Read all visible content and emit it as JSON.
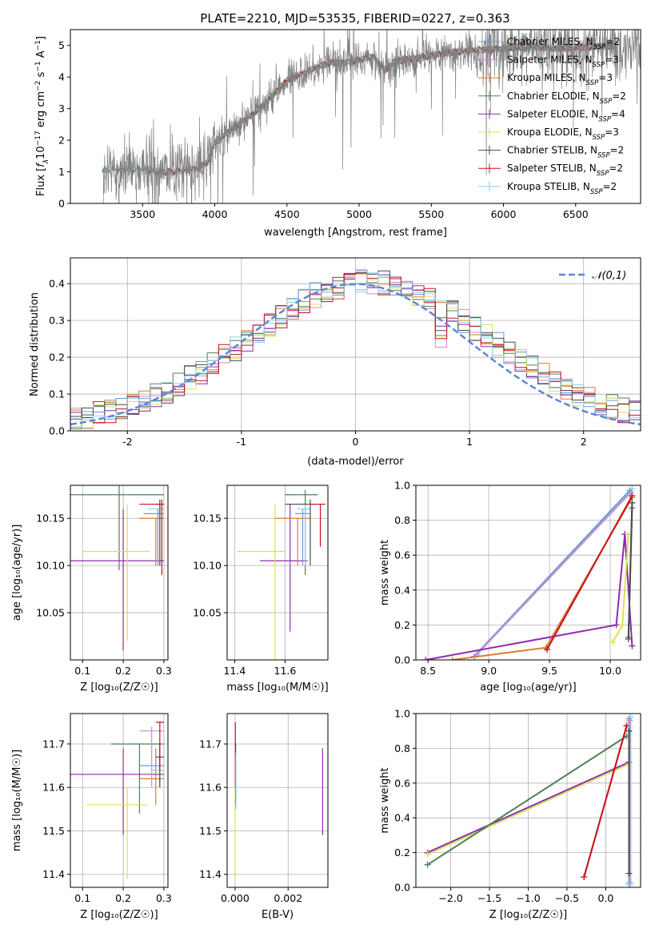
{
  "figure": {
    "title": "PLATE=2210, MJD=53535, FIBERID=0227, z=0.363"
  },
  "colors": {
    "data": "#808080",
    "chabrier_miles": "#6a9bd8",
    "salpeter_miles": "#c78fd0",
    "kroupa_miles": "#e07b2c",
    "chabrier_elodie": "#4f7f55",
    "salpeter_elodie": "#8e2bb0",
    "kroupa_elodie": "#d8e25a",
    "chabrier_stelib": "#4a4a4a",
    "salpeter_stelib": "#c8101e",
    "kroupa_stelib": "#86d3e3",
    "normal": "#5b87d8",
    "grid": "#b0b0b0"
  },
  "chart_data": [
    {
      "id": "spectrum",
      "type": "line",
      "xlabel": "wavelength [Angstrom, rest frame]",
      "ylabel_parts": [
        "Flux [",
        "f",
        "λ",
        "10",
        "−17",
        " erg cm",
        "−2",
        " s",
        "−1",
        " A",
        "−1",
        "]"
      ],
      "xlim": [
        3000,
        6950
      ],
      "ylim": [
        0,
        5.5
      ],
      "xticks": [
        3500,
        4000,
        4500,
        5000,
        5500,
        6000,
        6500
      ],
      "yticks": [
        0,
        1,
        2,
        3,
        4,
        5
      ],
      "grid": false,
      "legend_position": "right",
      "legend": [
        {
          "key": "chabrier_miles",
          "text": "Chabrier MILES, N",
          "sub": "SSP",
          "val": "=2"
        },
        {
          "key": "salpeter_miles",
          "text": "Salpeter MILES, N",
          "sub": "SSP",
          "val": "=3"
        },
        {
          "key": "kroupa_miles",
          "text": "Kroupa MILES, N",
          "sub": "SSP",
          "val": "=3"
        },
        {
          "key": "chabrier_elodie",
          "text": "Chabrier ELODIE, N",
          "sub": "SSP",
          "val": "=2"
        },
        {
          "key": "salpeter_elodie",
          "text": "Salpeter ELODIE, N",
          "sub": "SSP",
          "val": "=4"
        },
        {
          "key": "kroupa_elodie",
          "text": "Kroupa ELODIE, N",
          "sub": "SSP",
          "val": "=3"
        },
        {
          "key": "chabrier_stelib",
          "text": "Chabrier STELIB, N",
          "sub": "SSP",
          "val": "=2"
        },
        {
          "key": "salpeter_stelib",
          "text": "Salpeter STELIB, N",
          "sub": "SSP",
          "val": "=2"
        },
        {
          "key": "kroupa_stelib",
          "text": "Kroupa STELIB, N",
          "sub": "SSP",
          "val": "=2"
        }
      ],
      "continuum": [
        [
          3220,
          1.05
        ],
        [
          3300,
          1.1
        ],
        [
          3400,
          1.05
        ],
        [
          3500,
          1.1
        ],
        [
          3600,
          1.0
        ],
        [
          3700,
          1.0
        ],
        [
          3800,
          1.05
        ],
        [
          3880,
          1.1
        ],
        [
          3950,
          1.3
        ],
        [
          4000,
          1.9
        ],
        [
          4100,
          2.3
        ],
        [
          4200,
          2.6
        ],
        [
          4300,
          2.95
        ],
        [
          4400,
          3.4
        ],
        [
          4500,
          3.9
        ],
        [
          4600,
          4.1
        ],
        [
          4700,
          4.3
        ],
        [
          4800,
          4.45
        ],
        [
          4900,
          4.45
        ],
        [
          5000,
          4.55
        ],
        [
          5100,
          4.65
        ],
        [
          5180,
          4.2
        ],
        [
          5250,
          4.5
        ],
        [
          5400,
          4.6
        ],
        [
          5600,
          4.75
        ],
        [
          5800,
          4.85
        ],
        [
          6000,
          4.9
        ],
        [
          6200,
          4.95
        ],
        [
          6400,
          4.9
        ],
        [
          6600,
          4.95
        ],
        [
          6800,
          5.0
        ]
      ]
    },
    {
      "id": "residuals",
      "type": "histogram",
      "xlabel": "(data-model)/error",
      "ylabel": "Normed distribution",
      "xlim": [
        -2.5,
        2.5
      ],
      "ylim": [
        0,
        0.47
      ],
      "xticks": [
        -2,
        -1,
        0,
        1,
        2
      ],
      "yticks": [
        0.0,
        0.1,
        0.2,
        0.3,
        0.4
      ],
      "grid": true,
      "legend_position": "top-right",
      "legend_label": "𝒩(0,1)",
      "bin_width": 0.1
    },
    {
      "id": "age_vs_Z",
      "type": "scatter",
      "xlabel": "Z [log₁₀(Z/Z☉)]",
      "ylabel": "age  [log₁₀(age/yr)]",
      "xlim": [
        0.07,
        0.31
      ],
      "ylim": [
        10.0,
        10.185
      ],
      "xticks": [
        0.1,
        0.2,
        0.3
      ],
      "yticks": [
        10.05,
        10.1,
        10.15
      ],
      "grid": true
    },
    {
      "id": "age_vs_mass",
      "type": "scatter",
      "xlabel": "mass [log₁₀(M/M☉)]",
      "ylabel": "",
      "xlim": [
        11.37,
        11.77
      ],
      "ylim": [
        10.0,
        10.185
      ],
      "xticks": [
        11.4,
        11.6
      ],
      "yticks": [
        10.05,
        10.1,
        10.15
      ],
      "grid": true
    },
    {
      "id": "weight_vs_age",
      "type": "line",
      "xlabel": "age  [log₁₀(age/yr)]",
      "ylabel": "mass weight",
      "xlim": [
        8.4,
        10.25
      ],
      "ylim": [
        0,
        1.0
      ],
      "xticks": [
        8.5,
        9.0,
        9.5,
        10.0
      ],
      "yticks": [
        0.0,
        0.2,
        0.4,
        0.6,
        0.8,
        1.0
      ],
      "grid": true,
      "series": [
        {
          "key": "kroupa_stelib",
          "x": [
            8.9,
            10.18
          ],
          "y": [
            0.03,
            0.98
          ]
        },
        {
          "key": "chabrier_miles",
          "x": [
            8.88,
            10.16
          ],
          "y": [
            0.02,
            0.97
          ]
        },
        {
          "key": "salpeter_miles",
          "x": [
            8.9,
            10.17
          ],
          "y": [
            0.03,
            0.96
          ]
        },
        {
          "key": "kroupa_miles",
          "x": [
            8.7,
            9.47,
            10.18
          ],
          "y": [
            0.0,
            0.07,
            0.93
          ]
        },
        {
          "key": "salpeter_elodie",
          "x": [
            8.48,
            10.05,
            10.12,
            10.18
          ],
          "y": [
            0.0,
            0.2,
            0.72,
            0.08
          ]
        },
        {
          "key": "chabrier_elodie",
          "x": [
            10.15,
            10.18
          ],
          "y": [
            0.13,
            0.87
          ]
        },
        {
          "key": "kroupa_elodie",
          "x": [
            10.02,
            10.1,
            10.15
          ],
          "y": [
            0.1,
            0.2,
            0.72
          ]
        },
        {
          "key": "salpeter_stelib",
          "x": [
            9.48,
            10.18
          ],
          "y": [
            0.06,
            0.94
          ]
        },
        {
          "key": "chabrier_stelib",
          "x": [
            10.15,
            10.18
          ],
          "y": [
            0.12,
            0.9
          ]
        }
      ]
    },
    {
      "id": "mass_vs_Z",
      "type": "scatter",
      "xlabel": "Z [log₁₀(Z/Z☉)]",
      "ylabel": "mass [log₁₀(M/M☉)]",
      "xlim": [
        0.07,
        0.31
      ],
      "ylim": [
        11.37,
        11.77
      ],
      "xticks": [
        0.1,
        0.2,
        0.3
      ],
      "yticks": [
        11.4,
        11.5,
        11.6,
        11.7
      ],
      "grid": true
    },
    {
      "id": "mass_vs_ebv",
      "type": "scatter",
      "xlabel": "E(B-V)",
      "ylabel": "",
      "xlim": [
        -0.0003,
        0.0035
      ],
      "ylim": [
        11.37,
        11.77
      ],
      "xticks": [
        0.0,
        0.002
      ],
      "xticklabels": [
        "0.000",
        "0.002"
      ],
      "yticks": [
        11.4,
        11.5,
        11.6,
        11.7
      ],
      "grid": true
    },
    {
      "id": "weight_vs_Z",
      "type": "line",
      "xlabel": "Z [log₁₀(Z/Z☉)]",
      "ylabel": "mass weight",
      "xlim": [
        -2.45,
        0.45
      ],
      "ylim": [
        0,
        1.0
      ],
      "xticks": [
        -2.0,
        -1.5,
        -1.0,
        -0.5,
        0.0
      ],
      "yticks": [
        0.0,
        0.2,
        0.4,
        0.6,
        0.8,
        1.0
      ],
      "grid": true,
      "series": [
        {
          "key": "salpeter_elodie",
          "x": [
            -2.3,
            0.3
          ],
          "y": [
            0.2,
            0.72
          ]
        },
        {
          "key": "kroupa_elodie",
          "x": [
            -2.3,
            0.3
          ],
          "y": [
            0.19,
            0.71
          ]
        },
        {
          "key": "chabrier_elodie",
          "x": [
            -2.3,
            0.27
          ],
          "y": [
            0.13,
            0.87
          ]
        },
        {
          "key": "kroupa_miles",
          "x": [
            -0.28,
            0.27
          ],
          "y": [
            0.06,
            0.93
          ]
        },
        {
          "key": "salpeter_stelib",
          "x": [
            -0.28,
            0.27
          ],
          "y": [
            0.06,
            0.93
          ]
        },
        {
          "key": "chabrier_miles",
          "x": [
            0.3,
            0.3
          ],
          "y": [
            0.02,
            0.97
          ]
        },
        {
          "key": "kroupa_stelib",
          "x": [
            0.32,
            0.32
          ],
          "y": [
            0.02,
            0.98
          ]
        },
        {
          "key": "salpeter_miles",
          "x": [
            0.31,
            0.31
          ],
          "y": [
            0.03,
            0.96
          ]
        },
        {
          "key": "chabrier_stelib",
          "x": [
            0.3,
            0.3
          ],
          "y": [
            0.08,
            0.9
          ]
        }
      ]
    }
  ],
  "errorbars": {
    "age_vs_Z": [
      {
        "key": "chabrier_elodie",
        "x": 0.19,
        "xerr": [
          0.06,
          0.3
        ],
        "y": 10.175,
        "yerr": [
          10.095,
          10.185
        ]
      },
      {
        "key": "salpeter_elodie",
        "x": 0.2,
        "xerr": [
          0.07,
          0.3
        ],
        "y": 10.105,
        "yerr": [
          10.01,
          10.16
        ]
      },
      {
        "key": "kroupa_elodie",
        "x": 0.21,
        "xerr": [
          0.1,
          0.265
        ],
        "y": 10.115,
        "yerr": [
          10.02,
          10.165
        ]
      },
      {
        "key": "kroupa_miles",
        "x": 0.28,
        "xerr": [
          0.24,
          0.3
        ],
        "y": 10.15,
        "yerr": [
          10.1,
          10.15
        ]
      },
      {
        "key": "chabrier_miles",
        "x": 0.285,
        "xerr": [
          0.25,
          0.3
        ],
        "y": 10.155,
        "yerr": [
          10.1,
          10.16
        ]
      },
      {
        "key": "kroupa_stelib",
        "x": 0.29,
        "xerr": [
          0.26,
          0.3
        ],
        "y": 10.16,
        "yerr": [
          10.1,
          10.165
        ]
      },
      {
        "key": "chabrier_stelib",
        "x": 0.29,
        "xerr": [
          0.28,
          0.3
        ],
        "y": 10.165,
        "yerr": [
          10.1,
          10.17
        ]
      },
      {
        "key": "salpeter_stelib",
        "x": 0.295,
        "xerr": [
          0.24,
          0.3
        ],
        "y": 10.165,
        "yerr": [
          10.09,
          10.17
        ]
      }
    ],
    "age_vs_mass": [
      {
        "key": "chabrier_elodie",
        "x": 11.68,
        "xerr": [
          11.6,
          11.73
        ],
        "y": 10.175,
        "yerr": [
          10.09,
          10.18
        ]
      },
      {
        "key": "salpeter_elodie",
        "x": 11.62,
        "xerr": [
          11.5,
          11.69
        ],
        "y": 10.105,
        "yerr": [
          10.03,
          10.165
        ]
      },
      {
        "key": "kroupa_elodie",
        "x": 11.56,
        "xerr": [
          11.41,
          11.6
        ],
        "y": 10.115,
        "yerr": [
          10.0,
          10.165
        ]
      },
      {
        "key": "kroupa_miles",
        "x": 11.65,
        "xerr": [
          11.56,
          11.7
        ],
        "y": 10.15,
        "yerr": [
          10.1,
          10.15
        ]
      },
      {
        "key": "chabrier_miles",
        "x": 11.67,
        "xerr": [
          11.64,
          11.7
        ],
        "y": 10.155,
        "yerr": [
          10.1,
          10.16
        ]
      },
      {
        "key": "kroupa_stelib",
        "x": 11.68,
        "xerr": [
          11.65,
          11.7
        ],
        "y": 10.16,
        "yerr": [
          10.1,
          10.165
        ]
      },
      {
        "key": "chabrier_stelib",
        "x": 11.7,
        "xerr": [
          11.6,
          11.73
        ],
        "y": 10.165,
        "yerr": [
          10.1,
          10.17
        ]
      },
      {
        "key": "salpeter_stelib",
        "x": 11.74,
        "xerr": [
          11.7,
          11.76
        ],
        "y": 10.165,
        "yerr": [
          10.12,
          10.165
        ]
      }
    ],
    "mass_vs_Z": [
      {
        "key": "chabrier_elodie",
        "x": 0.24,
        "xerr": [
          0.17,
          0.3
        ],
        "y": 11.7,
        "yerr": [
          11.54,
          11.7
        ]
      },
      {
        "key": "salpeter_elodie",
        "x": 0.2,
        "xerr": [
          0.07,
          0.3
        ],
        "y": 11.63,
        "yerr": [
          11.49,
          11.69
        ]
      },
      {
        "key": "kroupa_elodie",
        "x": 0.21,
        "xerr": [
          0.11,
          0.26
        ],
        "y": 11.56,
        "yerr": [
          11.39,
          11.6
        ]
      },
      {
        "key": "kroupa_miles",
        "x": 0.28,
        "xerr": [
          0.24,
          0.3
        ],
        "y": 11.62,
        "yerr": [
          11.56,
          11.69
        ]
      },
      {
        "key": "chabrier_miles",
        "x": 0.29,
        "xerr": [
          0.24,
          0.3
        ],
        "y": 11.65,
        "yerr": [
          11.6,
          11.67
        ]
      },
      {
        "key": "kroupa_stelib",
        "x": 0.29,
        "xerr": [
          0.27,
          0.3
        ],
        "y": 11.64,
        "yerr": [
          11.6,
          11.67
        ]
      },
      {
        "key": "salpeter_miles",
        "x": 0.27,
        "xerr": [
          0.24,
          0.3
        ],
        "y": 11.73,
        "yerr": [
          11.6,
          11.74
        ]
      },
      {
        "key": "chabrier_stelib",
        "x": 0.29,
        "xerr": [
          0.28,
          0.3
        ],
        "y": 11.67,
        "yerr": [
          11.6,
          11.7
        ]
      },
      {
        "key": "salpeter_stelib",
        "x": 0.29,
        "xerr": [
          0.28,
          0.3
        ],
        "y": 11.75,
        "yerr": [
          11.64,
          11.75
        ]
      }
    ],
    "mass_vs_ebv": [
      {
        "key": "kroupa_elodie",
        "x": 0.0,
        "y": 11.56,
        "yerr": [
          11.39,
          11.6
        ]
      },
      {
        "key": "salpeter_stelib",
        "x": 1e-05,
        "y": 11.7,
        "yerr": [
          11.6,
          11.75
        ]
      },
      {
        "key": "chabrier_stelib",
        "x": 2e-05,
        "y": 11.67,
        "yerr": [
          11.56,
          11.7
        ]
      },
      {
        "key": "kroupa_stelib",
        "x": 3e-05,
        "y": 11.64,
        "yerr": [
          11.55,
          11.68
        ]
      },
      {
        "key": "salpeter_elodie",
        "x": 0.0033,
        "y": 11.6,
        "yerr": [
          11.49,
          11.69
        ]
      }
    ]
  }
}
